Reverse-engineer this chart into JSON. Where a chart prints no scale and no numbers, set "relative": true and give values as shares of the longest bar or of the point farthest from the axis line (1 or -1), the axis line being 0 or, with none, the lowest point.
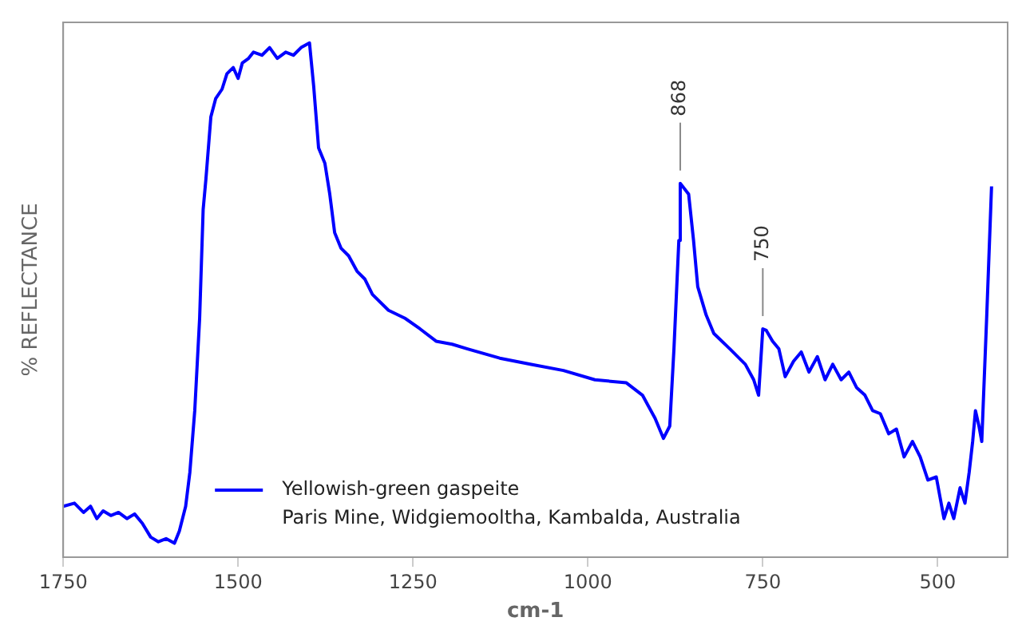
{
  "chart_data": {
    "type": "line",
    "relative": true,
    "xlabel": "cm-1",
    "ylabel": "% REFLECTANCE",
    "xlim": [
      1750,
      400
    ],
    "xticks": [
      1750,
      1500,
      1250,
      1000,
      750,
      500
    ],
    "grid": false,
    "legend": "bottom left",
    "marker": "none",
    "line_style": "solid",
    "series": [
      {
        "name": "Yellowish-green gaspeite",
        "color": "#0000ff",
        "x": [
          1750,
          1734,
          1721,
          1711,
          1702,
          1693,
          1682,
          1671,
          1659,
          1648,
          1637,
          1625,
          1614,
          1603,
          1591,
          1584,
          1575,
          1569,
          1562,
          1555,
          1550,
          1546,
          1539,
          1532,
          1523,
          1516,
          1507,
          1500,
          1494,
          1485,
          1478,
          1466,
          1455,
          1444,
          1432,
          1421,
          1410,
          1398,
          1392,
          1385,
          1376,
          1369,
          1362,
          1353,
          1342,
          1330,
          1319,
          1308,
          1285,
          1262,
          1240,
          1217,
          1194,
          1172,
          1126,
          1081,
          1035,
          990,
          945,
          922,
          904,
          892,
          883,
          877,
          870,
          868,
          856,
          849,
          843,
          831,
          820,
          797,
          775,
          763,
          756,
          750,
          745,
          736,
          727,
          718,
          706,
          695,
          684,
          672,
          661,
          650,
          638,
          627,
          616,
          604,
          593,
          582,
          570,
          559,
          548,
          536,
          525,
          514,
          502,
          491,
          484,
          477,
          468,
          461,
          455,
          450,
          446,
          441,
          437,
          430,
          423
        ],
        "values": [
          0.099,
          0.105,
          0.087,
          0.099,
          0.075,
          0.09,
          0.081,
          0.087,
          0.075,
          0.084,
          0.066,
          0.039,
          0.03,
          0.036,
          0.027,
          0.051,
          0.099,
          0.165,
          0.285,
          0.465,
          0.676,
          0.736,
          0.856,
          0.892,
          0.91,
          0.94,
          0.952,
          0.931,
          0.961,
          0.97,
          0.982,
          0.976,
          0.991,
          0.97,
          0.982,
          0.976,
          0.991,
          1,
          0.916,
          0.796,
          0.766,
          0.706,
          0.631,
          0.601,
          0.586,
          0.556,
          0.541,
          0.511,
          0.48,
          0.465,
          0.444,
          0.42,
          0.414,
          0.405,
          0.387,
          0.375,
          0.363,
          0.345,
          0.339,
          0.315,
          0.27,
          0.231,
          0.255,
          0.405,
          0.616,
          0.727,
          0.706,
          0.616,
          0.526,
          0.471,
          0.435,
          0.405,
          0.375,
          0.345,
          0.315,
          0.444,
          0.441,
          0.42,
          0.405,
          0.351,
          0.381,
          0.399,
          0.36,
          0.39,
          0.345,
          0.375,
          0.345,
          0.36,
          0.33,
          0.315,
          0.285,
          0.279,
          0.24,
          0.249,
          0.195,
          0.225,
          0.195,
          0.15,
          0.156,
          0.075,
          0.105,
          0.075,
          0.135,
          0.105,
          0.165,
          0.225,
          0.285,
          0.255,
          0.225,
          0.465,
          0.721
        ]
      }
    ],
    "annotations": [
      {
        "text": "868",
        "x": 868,
        "y": 0.727
      },
      {
        "text": "750",
        "x": 750,
        "y": 0.444
      },
      "Paris Mine, Widgiemooltha, Kambalda, Australia"
    ]
  }
}
